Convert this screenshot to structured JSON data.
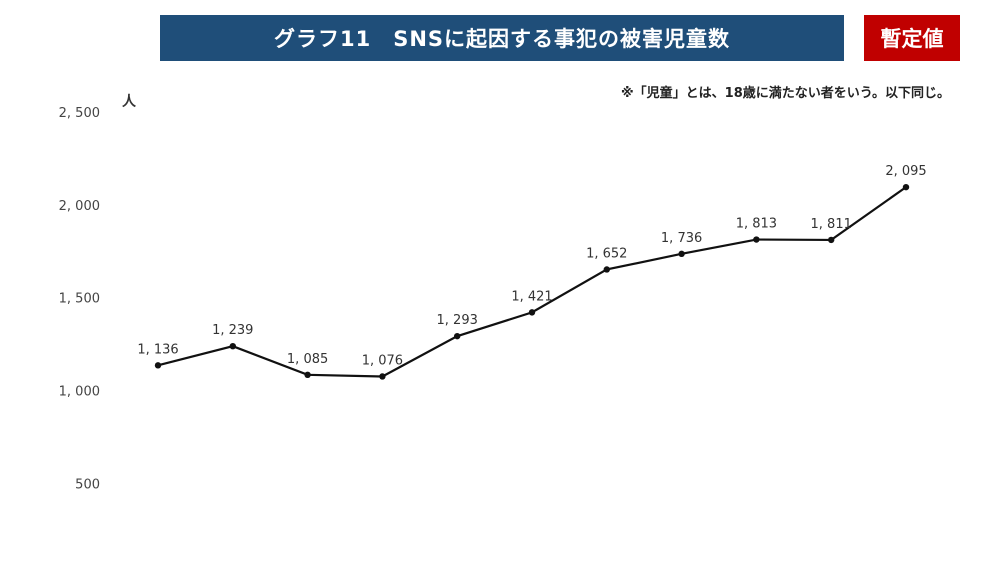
{
  "header": {
    "title": "グラフ11　SNSに起因する事犯の被害児童数",
    "badge": "暫定値"
  },
  "note": "※「児童」とは、18歳に満たない者をいう。以下同じ。",
  "chart_data": {
    "type": "line",
    "yunit": "人",
    "ylim": [
      0,
      2500
    ],
    "yticks": [
      {
        "value": 2500,
        "label": "2, 500"
      },
      {
        "value": 2000,
        "label": "2, 000"
      },
      {
        "value": 1500,
        "label": "1, 500"
      },
      {
        "value": 1000,
        "label": "1, 000"
      },
      {
        "value": 500,
        "label": "500"
      }
    ],
    "grid": false,
    "series": [
      {
        "values": [
          1136,
          1239,
          1085,
          1076,
          1293,
          1421,
          1652,
          1736,
          1813,
          1811,
          2095
        ],
        "labels": [
          "1, 136",
          "1, 239",
          "1, 085",
          "1, 076",
          "1, 293",
          "1, 421",
          "1, 652",
          "1, 736",
          "1, 813",
          "1, 811",
          "2, 095"
        ],
        "color": "#111111"
      }
    ]
  }
}
